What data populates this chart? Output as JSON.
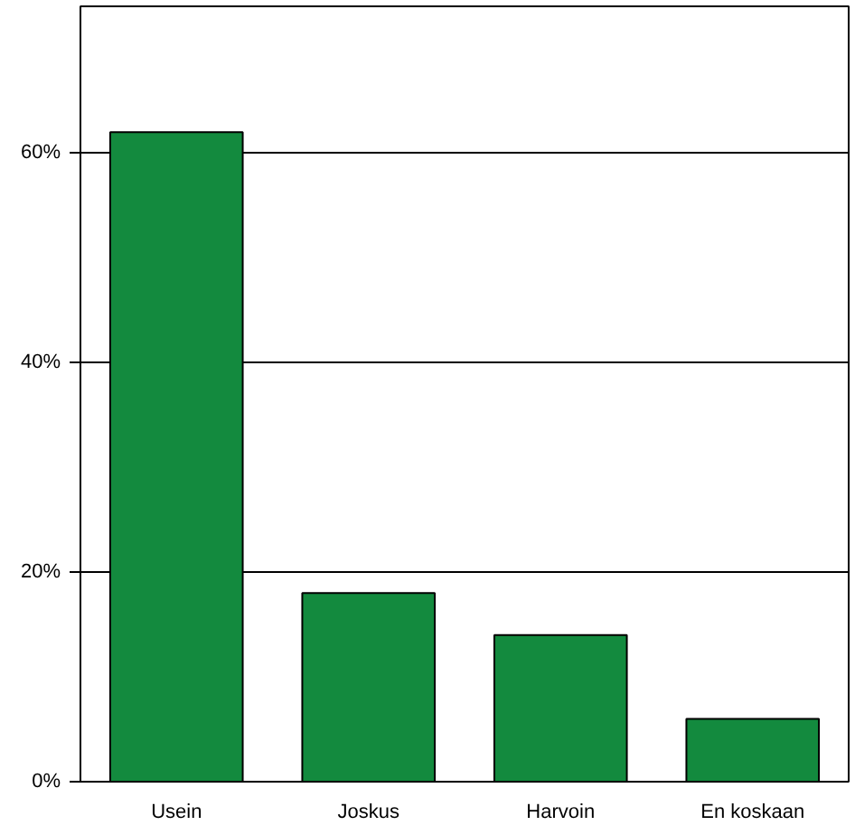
{
  "chart_data": {
    "type": "bar",
    "categories": [
      "Usein",
      "Joskus",
      "Harvoin",
      "En koskaan"
    ],
    "values": [
      62,
      18,
      14,
      6
    ],
    "color": "#138a3e",
    "ylim": [
      0,
      74
    ],
    "yticks": [
      {
        "value": 0,
        "label": "0%"
      },
      {
        "value": 20,
        "label": "20%"
      },
      {
        "value": 40,
        "label": "40%"
      },
      {
        "value": 60,
        "label": "60%"
      }
    ],
    "grid": "y"
  }
}
